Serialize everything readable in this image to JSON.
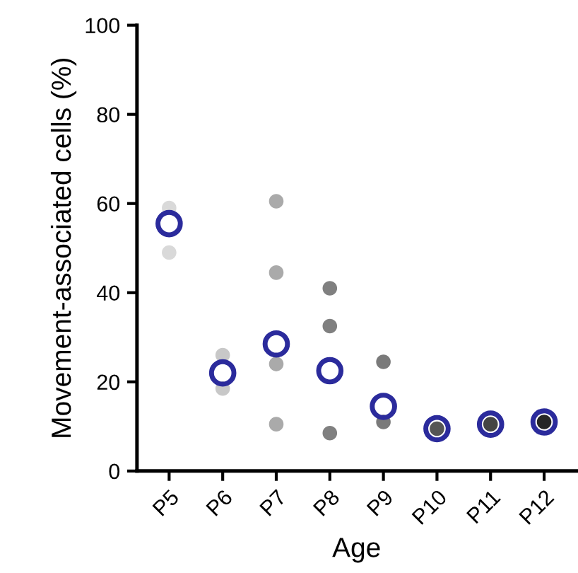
{
  "chart_data": {
    "type": "scatter",
    "xlabel": "Age",
    "ylabel": "Movement-associated cells (%)",
    "categories": [
      "P5",
      "P6",
      "P7",
      "P8",
      "P9",
      "P10",
      "P11",
      "P12"
    ],
    "ylim": [
      0,
      100
    ],
    "yticks": [
      0,
      20,
      40,
      60,
      80,
      100
    ],
    "grid": false,
    "marker": "circle",
    "series": [
      {
        "color": "#d9d9d9",
        "x": [
          "P5",
          "P5"
        ],
        "values": [
          59,
          49
        ]
      },
      {
        "color": "#c8c8c8",
        "x": [
          "P6",
          "P6"
        ],
        "values": [
          26,
          18.5
        ]
      },
      {
        "color": "#aaaaaa",
        "x": [
          "P7",
          "P7",
          "P7",
          "P7"
        ],
        "values": [
          60.5,
          44.5,
          24,
          10.5
        ]
      },
      {
        "color": "#808080",
        "x": [
          "P8",
          "P8",
          "P8"
        ],
        "values": [
          41,
          32.5,
          8.5
        ]
      },
      {
        "color": "#7a7a7a",
        "x": [
          "P9",
          "P9"
        ],
        "values": [
          24.5,
          11
        ]
      },
      {
        "color": "#555555",
        "x": [
          "P10"
        ],
        "values": [
          9.5
        ]
      },
      {
        "color": "#444444",
        "x": [
          "P11"
        ],
        "values": [
          10.5
        ]
      },
      {
        "color": "#262626",
        "x": [
          "P12"
        ],
        "values": [
          11
        ]
      },
      {
        "color": "#2b2b9c",
        "x": [
          "P5",
          "P6",
          "P7",
          "P8",
          "P9",
          "P10",
          "P11",
          "P12"
        ],
        "values": [
          55.5,
          22,
          28.5,
          22.5,
          14.5,
          9.5,
          10.5,
          11
        ]
      }
    ]
  }
}
